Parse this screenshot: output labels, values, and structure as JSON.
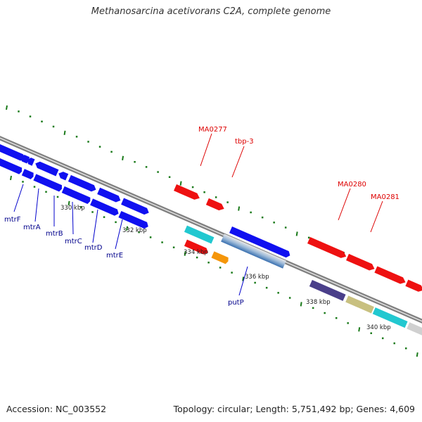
{
  "title": "Methanosarcina acetivorans C2A, complete genome",
  "footer": {
    "accession": "Accession: NC_003552",
    "summary": "Topology: circular; Length: 5,751,492 bp; Genes: 4,609"
  },
  "colors": {
    "blue": "#1010f0",
    "red": "#ee1111",
    "cyan": "#22c8d0",
    "orange": "#f5960a",
    "navy": "#4a3f8a",
    "khaki": "#c8c080",
    "silver": "#d0d0d0",
    "olive": "#6a8a30",
    "steel": "#4a80b8",
    "backbone": "#808080",
    "tick": "#1a7a1a",
    "blue_label": "#00008b",
    "red_label": "#dd0000"
  },
  "ruler_labels": [
    "330 kbp",
    "332 kbp",
    "334 kbp",
    "336 kbp",
    "338 kbp",
    "340 kbp"
  ],
  "gene_labels": {
    "mtrF": "mtrF",
    "mtrA": "mtrA",
    "mtrB": "mtrB",
    "mtrC": "mtrC",
    "mtrD": "mtrD",
    "mtrE": "mtrE",
    "putP": "putP",
    "MA0277": "MA0277",
    "tbp3": "tbp-3",
    "MA0280": "MA0280",
    "MA0281": "MA0281"
  }
}
